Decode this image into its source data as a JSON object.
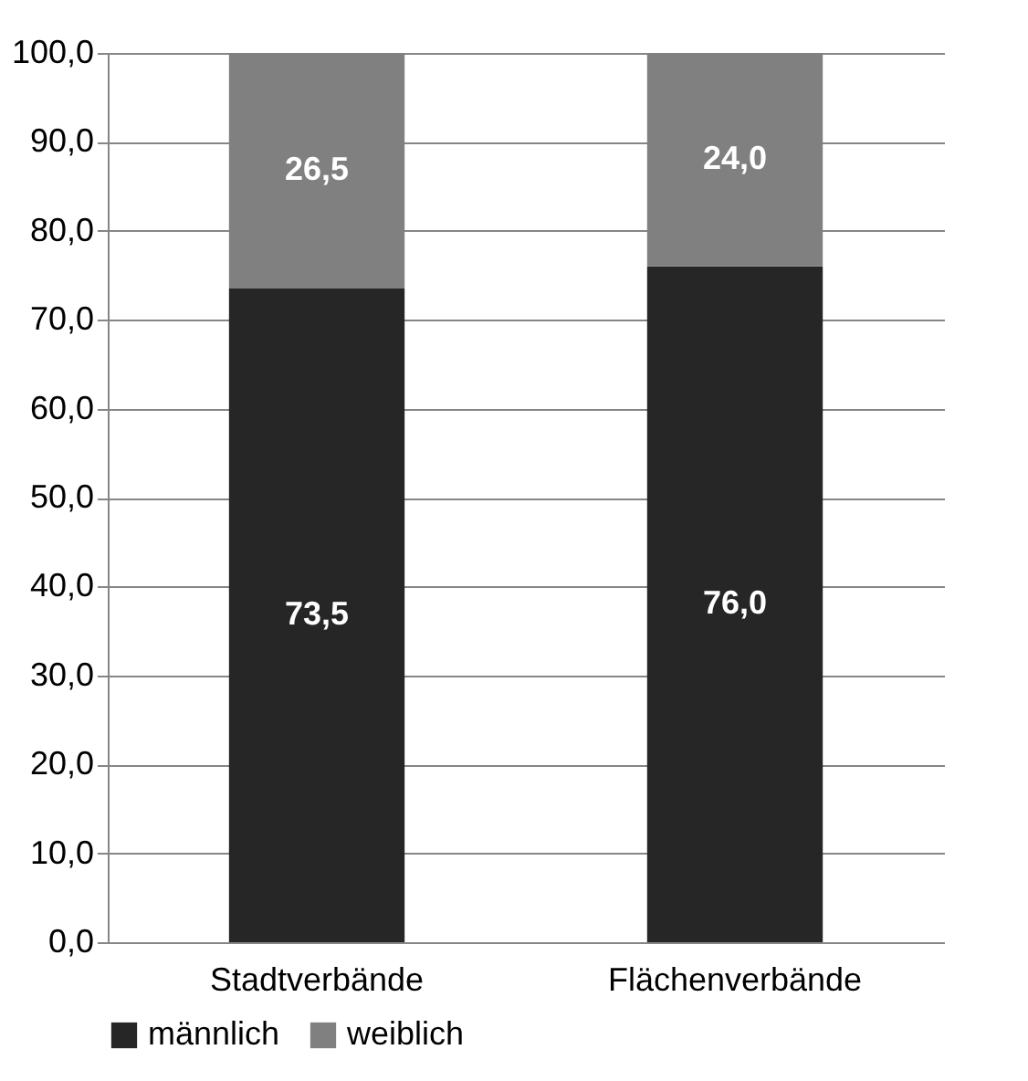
{
  "chart_data": {
    "type": "bar",
    "stacked": true,
    "categories": [
      "Stadtverbände",
      "Flächenverbände"
    ],
    "series": [
      {
        "name": "männlich",
        "color": "#262626",
        "values": [
          73.5,
          76.0
        ],
        "value_labels": [
          "73,5",
          "76,0"
        ]
      },
      {
        "name": "weiblich",
        "color": "#808080",
        "values": [
          26.5,
          24.0
        ],
        "value_labels": [
          "26,5",
          "24,0"
        ]
      }
    ],
    "ylim": [
      0,
      100
    ],
    "yticks": [
      {
        "value": 0,
        "label": "0,0"
      },
      {
        "value": 10,
        "label": "10,0"
      },
      {
        "value": 20,
        "label": "20,0"
      },
      {
        "value": 30,
        "label": "30,0"
      },
      {
        "value": 40,
        "label": "40,0"
      },
      {
        "value": 50,
        "label": "50,0"
      },
      {
        "value": 60,
        "label": "60,0"
      },
      {
        "value": 70,
        "label": "70,0"
      },
      {
        "value": 80,
        "label": "80,0"
      },
      {
        "value": 90,
        "label": "90,0"
      },
      {
        "value": 100,
        "label": "100,0"
      }
    ],
    "grid": "y",
    "legend": "bottom"
  }
}
